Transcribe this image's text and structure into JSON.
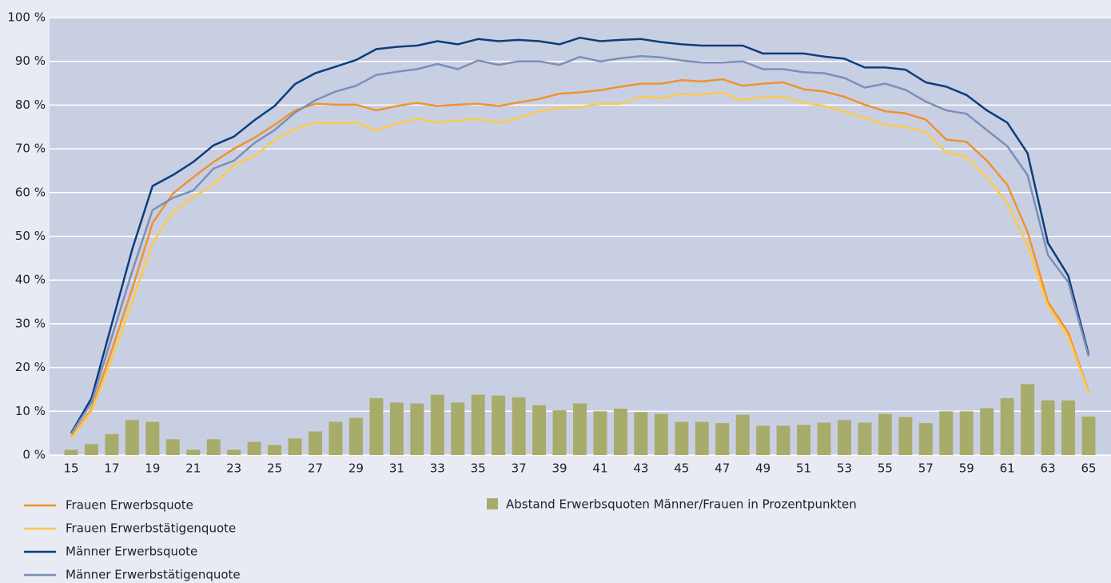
{
  "chart_data": {
    "type": "combo",
    "categories": [
      "15",
      null,
      "17",
      null,
      "19",
      null,
      "21",
      null,
      "23",
      null,
      "25",
      null,
      "27",
      null,
      "29",
      null,
      "31",
      null,
      "33",
      null,
      "35",
      null,
      "37",
      null,
      "39",
      null,
      "41",
      null,
      "43",
      null,
      "45",
      null,
      "47",
      null,
      "49",
      null,
      "51",
      null,
      "53",
      null,
      "55",
      null,
      "57",
      null,
      "59",
      null,
      "61",
      null,
      "63",
      null,
      "65"
    ],
    "ylim": [
      0,
      100
    ],
    "yticks": [
      {
        "value": 0,
        "label": "0 %"
      },
      {
        "value": 10,
        "label": "10 %"
      },
      {
        "value": 20,
        "label": "20 %"
      },
      {
        "value": 30,
        "label": "30 %"
      },
      {
        "value": 40,
        "label": "40 %"
      },
      {
        "value": 50,
        "label": "50 %"
      },
      {
        "value": 60,
        "label": "60 %"
      },
      {
        "value": 70,
        "label": "70 %"
      },
      {
        "value": 80,
        "label": "80 %"
      },
      {
        "value": 90,
        "label": "90 %"
      },
      {
        "value": 100,
        "label": "100 %"
      }
    ],
    "grid": true,
    "series": [
      {
        "name": "Frauen Erwerbsquote",
        "type": "line",
        "color": "#f0922e",
        "values": [
          4,
          10.5,
          24,
          38,
          53,
          59.8,
          63.5,
          67,
          70,
          72.5,
          75.5,
          78.8,
          80.3,
          80.1,
          80.1,
          78.8,
          79.8,
          80.5,
          79.8,
          80.1,
          80.3,
          79.8,
          80.6,
          81.4,
          82.6,
          82.9,
          83.4,
          84.2,
          84.9,
          84.9,
          85.7,
          85.4,
          85.9,
          84.4,
          84.9,
          85.2,
          83.6,
          83.1,
          81.9,
          80.1,
          78.6,
          78.1,
          76.7,
          72.1,
          71.6,
          67.3,
          61.8,
          51,
          35,
          28,
          14.5
        ]
      },
      {
        "name": "Frauen Erwerbstätigenquote",
        "type": "line",
        "color": "#fdc94a",
        "values": [
          3.8,
          10,
          22,
          35,
          48.5,
          55.5,
          59,
          61.8,
          66.3,
          68.3,
          72,
          74.5,
          76,
          75.8,
          76,
          74.3,
          75.8,
          76.8,
          76,
          76.5,
          76.8,
          76,
          77,
          78.6,
          79.3,
          79.5,
          80.3,
          80.3,
          81.9,
          81.6,
          82.6,
          82.4,
          82.9,
          81.1,
          81.9,
          81.9,
          80.5,
          79.8,
          78.5,
          77,
          75.5,
          75,
          73.8,
          69.2,
          68.1,
          63.5,
          57.5,
          48,
          34,
          27,
          14.3
        ]
      },
      {
        "name": "Männer Erwerbsquote",
        "type": "line",
        "color": "#0d3d7a",
        "values": [
          5,
          13,
          30,
          47,
          61.5,
          64,
          67,
          70.8,
          72.8,
          76.5,
          79.8,
          84.8,
          87.3,
          88.8,
          90.3,
          92.8,
          93.3,
          93.6,
          94.6,
          93.9,
          95.1,
          94.6,
          94.9,
          94.6,
          93.9,
          95.4,
          94.6,
          94.9,
          95.1,
          94.4,
          93.9,
          93.6,
          93.6,
          93.6,
          91.8,
          91.8,
          91.8,
          91.1,
          90.6,
          88.6,
          88.6,
          88.1,
          85.2,
          84.2,
          82.3,
          78.8,
          76,
          69,
          48.5,
          41,
          23
        ]
      },
      {
        "name": "Männer Erwerbstätigenquote",
        "type": "line",
        "color": "#7b8fb8",
        "values": [
          4.8,
          12,
          27,
          42,
          56,
          58.8,
          60.5,
          65.5,
          67.3,
          71.3,
          74.3,
          78.3,
          81.1,
          83.1,
          84.4,
          86.9,
          87.6,
          88.2,
          89.4,
          88.2,
          90.2,
          89.2,
          90,
          90,
          89.2,
          91,
          90,
          90.7,
          91.2,
          90.9,
          90.2,
          89.7,
          89.7,
          90,
          88.2,
          88.2,
          87.5,
          87.3,
          86.2,
          84,
          84.9,
          83.5,
          80.8,
          78.8,
          78,
          74.3,
          70.6,
          64,
          45.7,
          39.5,
          22.6
        ]
      },
      {
        "name": "Abstand Erwerbsquoten Männer/Frauen in Prozentpunkten",
        "type": "bar",
        "color": "#a8ac6a",
        "values": [
          1.2,
          2.5,
          4.8,
          8,
          7.6,
          3.6,
          1.2,
          3.6,
          1.2,
          3,
          2.3,
          3.8,
          5.4,
          7.6,
          8.5,
          13,
          12,
          11.8,
          13.8,
          12,
          13.8,
          13.6,
          13.2,
          11.4,
          10.2,
          11.8,
          10,
          10.6,
          9.8,
          9.4,
          7.6,
          7.6,
          7.3,
          9.2,
          6.7,
          6.7,
          6.9,
          7.4,
          8,
          7.4,
          9.4,
          8.7,
          7.3,
          10,
          10,
          10.7,
          13,
          16.2,
          12.5,
          12.5,
          8.8
        ]
      }
    ]
  }
}
